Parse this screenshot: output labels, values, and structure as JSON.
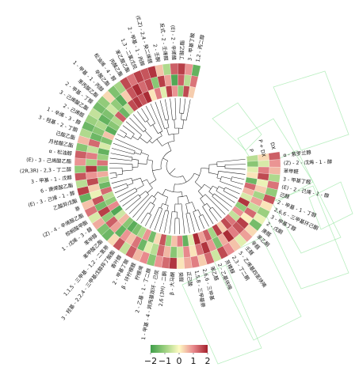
{
  "chart_data": {
    "type": "heatmap",
    "layout": "circular",
    "title": "",
    "colorbar": {
      "min": -2,
      "max": 2,
      "tick_values": [
        -2,
        -1,
        0,
        1,
        2
      ],
      "tick_labels": [
        "−2",
        "−1",
        "0",
        "1",
        "2"
      ],
      "colors": [
        "#3f9e4a",
        "#9bd07f",
        "#fffbc4",
        "#e8898d",
        "#a3202b"
      ]
    },
    "rows": [
      "α - 紫罗兰醇",
      "(Z) - 2 - 戊烯 - 1 - 醇",
      "苯甲醛",
      "3 - 甲基丁醛",
      "(E) - 2 - 己烯 - 1 - 醇",
      "己醛",
      "2 - 甲基 - 1 - 丁醇",
      "2,6,6 - 三甲基环己酮",
      "3 - 甲基丁醇",
      "2 - 戊酮",
      "庚醛",
      "苯乙酮",
      "辛醛",
      "壬醛",
      "5 - 乙烯基四氢呋喃",
      "2,3 - 丁二酮",
      "芳樟醇",
      "2 - 乙基呋喃",
      "苯乙醛",
      "2,6,6 - 三甲基",
      "1,5,8 - 三甲基萘",
      "正己酸",
      "癸醛",
      "β - 大马酮",
      "2,6 (3H) - 二酮",
      "1 - 甲基 - 4 - 异丙基双环 - 己烷",
      "2 - 乙基 - 1 - 丁二醇",
      "柠檬烯",
      "β - 环柠檬醛",
      "2 - 甲基丁酸",
      "香叶醇",
      "3 - 羟基 - 2,2,4 - 三甲基戊醇异丁酸酯",
      "1,1,5 - 三甲基 - 1,2 - 二氢萘",
      "苯甲酸乙酯",
      "苯甲醇",
      "1 - 戊烯 - 3 - 醇",
      "棕榈酸甲酯",
      "(Z) - 4 - 辛烯酸乙酯",
      "萘",
      "乙酸异戊酯",
      "(E) - 3 - 己烯 - 1 - 醇",
      "6 - 庚烯酸乙酯",
      "3 - 甲基 - 1 - 戊醇",
      "(2R,3R) - 2,3 - 丁二醇",
      "(E) - 3 - 己烯酸乙酯",
      "α - 松油醇",
      "月桂酸乙酯",
      "己酸乙酯",
      "3 - 羟基 - 2 - 丁酮",
      "1 - 辛烯 - 3 - 醇",
      "2 - 己烯醛",
      "3 - 己烯酸乙酯",
      "2 - 甲基 - 丁醛",
      "苯丙酸乙酯",
      "1 - 甲基 - 1 - 丙醇",
      "辛酸乙酯",
      "松油烯 - 4 - 醇",
      "丙酸乙酯",
      "苯乙酸乙酯",
      "1,3 - 二氯戊烷",
      "2 - 甲基 - 1 - 丙醇",
      "(E,Z) - 2,4 - 癸二烯醛",
      "2 - 壬酮",
      "反式 - 2 - 壬烯醛",
      "(E) - 2 - 辛烯醛",
      "丁酸乙酯",
      "3 - 甲基丁酸",
      "1,2 - 丙二醇"
    ],
    "sample_labels": [
      "P",
      "P + DX",
      "DX"
    ],
    "values": [
      [
        -0.7,
        0.3,
        1.4
      ],
      [
        -1.2,
        -0.4,
        0.9
      ],
      [
        -0.3,
        1.1,
        0.6
      ],
      [
        0.2,
        1.6,
        -0.8
      ],
      [
        -1.5,
        -0.2,
        1.2
      ],
      [
        1.3,
        0.4,
        -1.1
      ],
      [
        0.6,
        -0.9,
        1.5
      ],
      [
        -0.4,
        0.8,
        0.2
      ],
      [
        1.8,
        -0.6,
        -1.0
      ],
      [
        -1.1,
        1.3,
        -0.2
      ],
      [
        0.9,
        0.1,
        -1.4
      ],
      [
        -0.6,
        1.7,
        0.3
      ],
      [
        1.2,
        1.5,
        0.8
      ],
      [
        1.6,
        1.1,
        -0.3
      ],
      [
        0.4,
        1.9,
        0.5
      ],
      [
        1.7,
        0.7,
        1.0
      ],
      [
        -0.9,
        -1.3,
        1.6
      ],
      [
        1.4,
        0.9,
        -0.5
      ],
      [
        0.8,
        1.8,
        1.3
      ],
      [
        1.9,
        1.2,
        0.4
      ],
      [
        -0.3,
        0.2,
        1.1
      ],
      [
        -1.6,
        1.0,
        0.7
      ],
      [
        1.1,
        -0.5,
        0.2
      ],
      [
        0.5,
        -1.2,
        1.8
      ],
      [
        -1.0,
        0.6,
        1.3
      ],
      [
        1.5,
        1.3,
        0.9
      ],
      [
        0.3,
        -0.7,
        -1.2
      ],
      [
        -1.4,
        -0.3,
        1.0
      ],
      [
        0.9,
        -1.5,
        0.6
      ],
      [
        -0.8,
        1.2,
        1.4
      ],
      [
        -1.3,
        0.5,
        -0.6
      ],
      [
        -1.7,
        0.9,
        1.5
      ],
      [
        -1.2,
        -1.6,
        0.3
      ],
      [
        0.6,
        0.8,
        -1.5
      ],
      [
        -0.5,
        1.4,
        -1.3
      ],
      [
        -1.8,
        -1.1,
        0.7
      ],
      [
        1.0,
        1.7,
        -0.4
      ],
      [
        -1.1,
        -1.4,
        1.2
      ],
      [
        -0.7,
        1.5,
        0.5
      ],
      [
        1.3,
        -0.2,
        -1.6
      ],
      [
        -1.5,
        0.4,
        1.7
      ],
      [
        -0.9,
        1.6,
        -0.7
      ],
      [
        0.7,
        0.9,
        1.5
      ],
      [
        -1.4,
        1.8,
        -1.1
      ],
      [
        1.2,
        -0.9,
        0.9
      ],
      [
        -1.0,
        1.1,
        1.4
      ],
      [
        -1.6,
        -0.6,
        -1.2
      ],
      [
        -0.4,
        1.3,
        0.6
      ],
      [
        -1.3,
        -1.5,
        -0.8
      ],
      [
        0.5,
        -1.2,
        -1.5
      ],
      [
        -1.7,
        -0.8,
        -1.0
      ],
      [
        -1.2,
        -1.6,
        -0.6
      ],
      [
        -0.8,
        -1.3,
        -1.4
      ],
      [
        1.4,
        -0.5,
        -1.1
      ],
      [
        -1.5,
        -1.1,
        0.3
      ],
      [
        -0.6,
        -1.7,
        -1.3
      ],
      [
        1.6,
        0.4,
        -0.9
      ],
      [
        1.8,
        1.5,
        1.6
      ],
      [
        1.5,
        1.9,
        1.2
      ],
      [
        1.9,
        1.3,
        1.7
      ],
      [
        0.2,
        1.6,
        1.5
      ],
      [
        1.1,
        -1.2,
        1.8
      ],
      [
        -0.3,
        1.7,
        0.5
      ],
      [
        1.7,
        0.8,
        -0.8
      ],
      [
        0.9,
        -1.8,
        1.4
      ],
      [
        -1.1,
        1.4,
        1.7
      ],
      [
        1.6,
        -0.7,
        0.9
      ],
      [
        0.4,
        1.2,
        -1.6
      ]
    ]
  }
}
